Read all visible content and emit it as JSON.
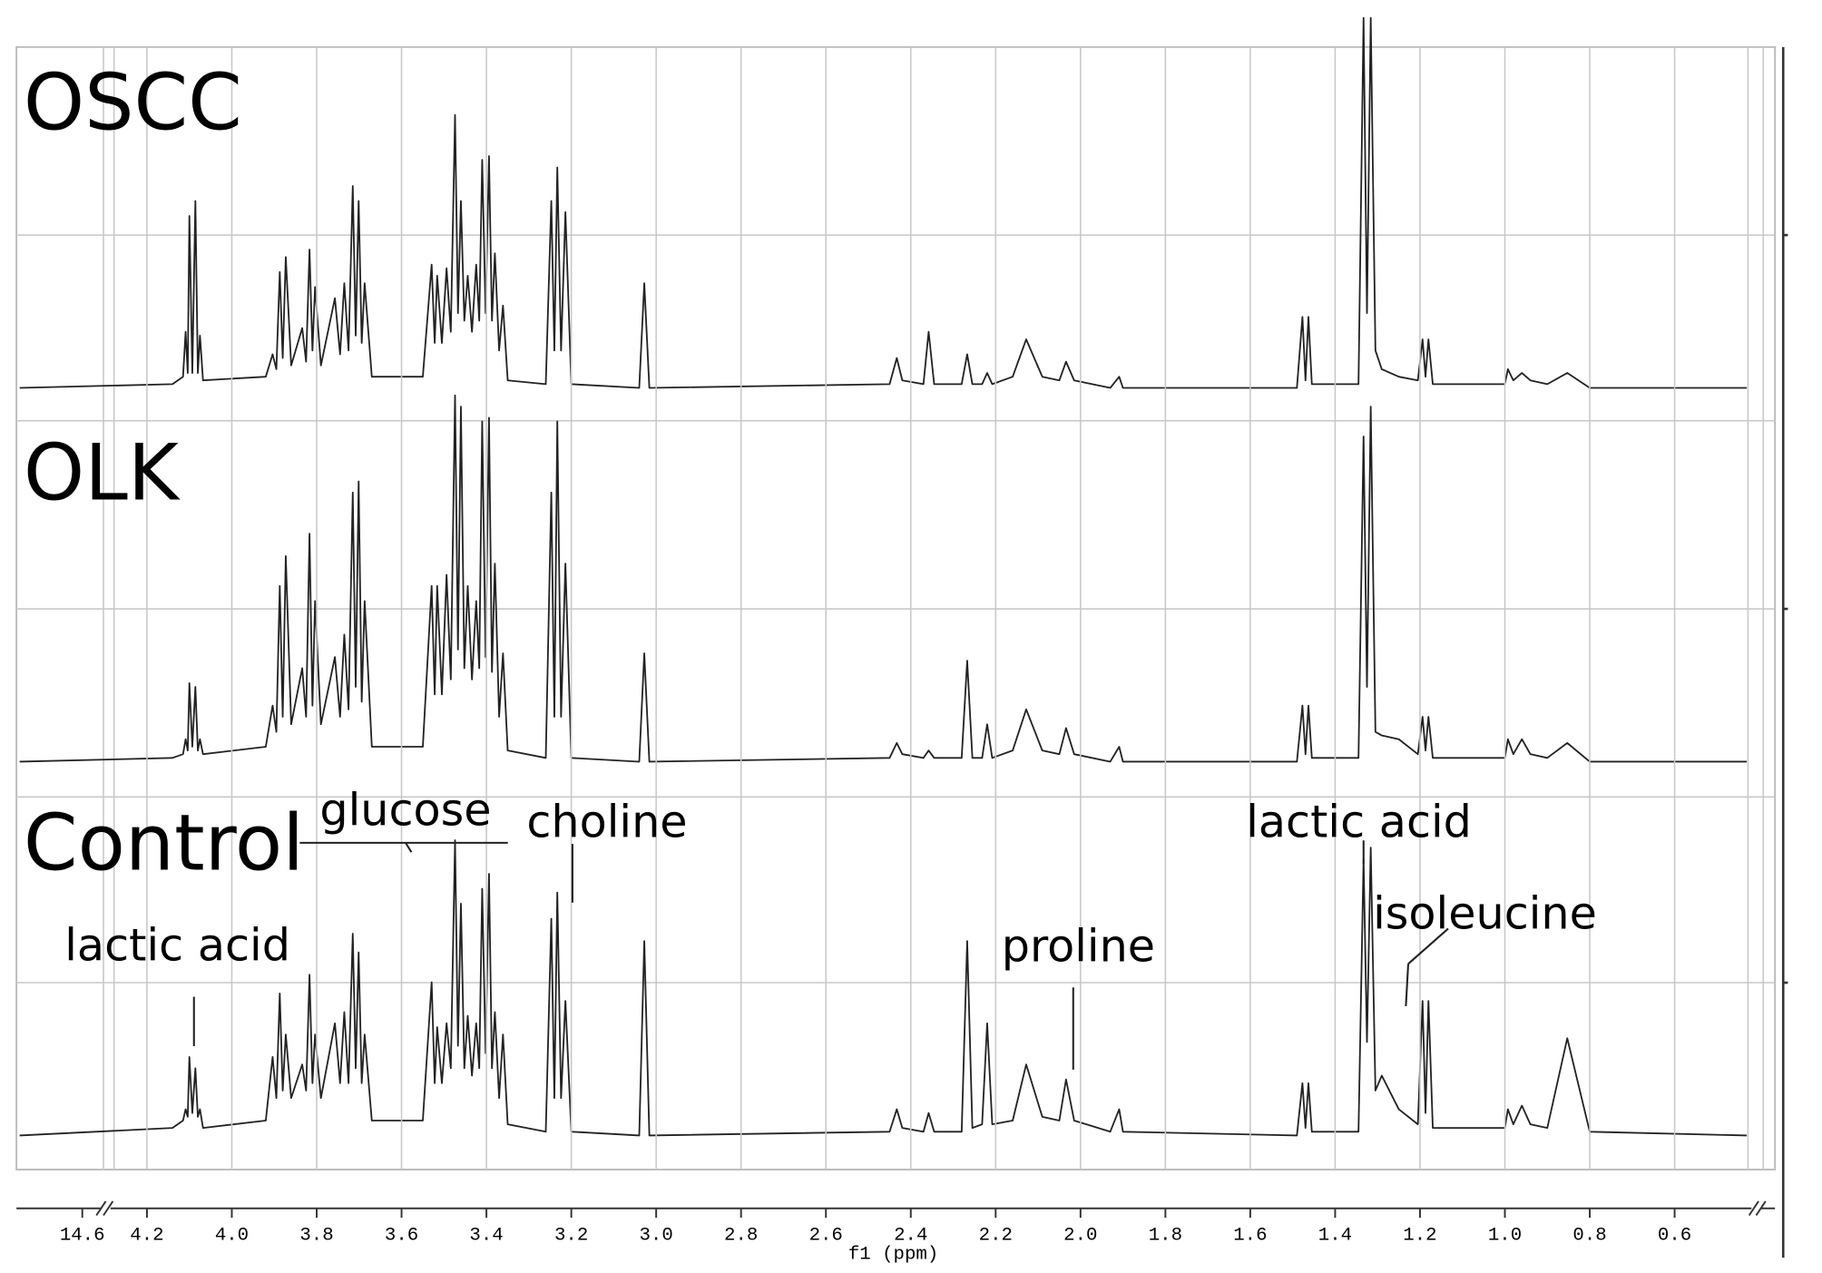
{
  "chart_data": {
    "type": "line",
    "x_label": "f1 (ppm)",
    "xlim": [
      4.5,
      0.43
    ],
    "ylim": [
      0,
      100
    ],
    "xticks": [
      14.6,
      4.2,
      {
        "value": 4,
        "label": "4.0"
      },
      3.8,
      3.6,
      3.4,
      3.2,
      {
        "value": 3,
        "label": "3.0"
      },
      2.8,
      2.6,
      2.4,
      2.2,
      {
        "value": 2,
        "label": "2.0"
      },
      1.8,
      1.6,
      1.4,
      1.2,
      {
        "value": 1,
        "label": "1.0"
      },
      0.8,
      0.6
    ],
    "grid": true,
    "annotations": [
      "glucose",
      "choline",
      "lactic acid",
      "proline",
      "lactic acid",
      "isoleucine"
    ],
    "x": [
      4.5,
      4.14,
      4.115,
      4.109,
      4.104,
      4.1,
      4.093,
      4.086,
      4.08,
      4.075,
      4.068,
      3.92,
      3.904,
      3.895,
      3.887,
      3.88,
      3.873,
      3.86,
      3.834,
      3.825,
      3.817,
      3.81,
      3.804,
      3.79,
      3.757,
      3.745,
      3.735,
      3.725,
      3.715,
      3.708,
      3.701,
      3.694,
      3.687,
      3.67,
      3.55,
      3.529,
      3.522,
      3.516,
      3.505,
      3.494,
      3.484,
      3.474,
      3.467,
      3.46,
      3.452,
      3.444,
      3.434,
      3.424,
      3.417,
      3.41,
      3.402,
      3.394,
      3.387,
      3.38,
      3.37,
      3.361,
      3.35,
      3.26,
      3.247,
      3.24,
      3.233,
      3.224,
      3.214,
      3.2,
      3.04,
      3.028,
      3.016,
      2.45,
      2.433,
      2.42,
      2.37,
      2.358,
      2.345,
      2.28,
      2.267,
      2.255,
      2.232,
      2.22,
      2.208,
      2.16,
      2.128,
      2.09,
      2.05,
      2.034,
      2.015,
      1.93,
      1.909,
      1.9,
      1.49,
      1.477,
      1.47,
      1.463,
      1.455,
      1.345,
      1.333,
      1.325,
      1.316,
      1.305,
      1.29,
      1.25,
      1.205,
      1.194,
      1.187,
      1.18,
      1.17,
      1,
      0.993,
      0.98,
      0.96,
      0.94,
      0.9,
      0.853,
      0.8,
      0.43
    ],
    "series": [
      {
        "name": "OSCC",
        "color": "#222222",
        "values": [
          0,
          1,
          3,
          15,
          4,
          46,
          4,
          50,
          4,
          14,
          2,
          3,
          9,
          5,
          31,
          8,
          35,
          6,
          16,
          7,
          37,
          10,
          27,
          6,
          24,
          9,
          28,
          10,
          54,
          14,
          50,
          12,
          28,
          3,
          3,
          33,
          12,
          30,
          12,
          32,
          15,
          73,
          20,
          50,
          18,
          30,
          15,
          33,
          18,
          61,
          20,
          62,
          18,
          36,
          10,
          22,
          2,
          1,
          50,
          10,
          59,
          10,
          47,
          1,
          0,
          28,
          0,
          1,
          8,
          2,
          1,
          15,
          1,
          1,
          9,
          1,
          1,
          4,
          1,
          3,
          13,
          3,
          2,
          7,
          2,
          0,
          3,
          0,
          0,
          19,
          2,
          19,
          1,
          1,
          99,
          20,
          99,
          10,
          5,
          3,
          2,
          13,
          3,
          13,
          1,
          1,
          5,
          2,
          4,
          2,
          1,
          4,
          0,
          0
        ]
      },
      {
        "name": "OLK",
        "color": "#222222",
        "values": [
          0,
          1,
          2,
          6,
          3,
          21,
          4,
          20,
          3,
          6,
          2,
          4,
          15,
          8,
          47,
          12,
          55,
          10,
          25,
          12,
          61,
          15,
          43,
          10,
          28,
          12,
          34,
          14,
          72,
          20,
          75,
          16,
          43,
          4,
          4,
          47,
          18,
          47,
          18,
          50,
          22,
          98,
          30,
          95,
          25,
          47,
          22,
          43,
          25,
          91,
          28,
          92,
          24,
          53,
          12,
          29,
          3,
          1,
          72,
          12,
          91,
          12,
          53,
          1,
          0,
          29,
          0,
          1,
          5,
          2,
          1,
          3,
          1,
          1,
          27,
          1,
          1,
          10,
          1,
          3,
          14,
          3,
          2,
          9,
          2,
          0,
          4,
          0,
          0,
          15,
          2,
          15,
          1,
          1,
          87,
          20,
          95,
          8,
          7,
          6,
          2,
          12,
          3,
          12,
          1,
          1,
          6,
          2,
          6,
          2,
          1,
          5,
          0,
          0
        ]
      },
      {
        "name": "Control",
        "color": "#222222",
        "values": [
          0,
          2,
          4,
          7,
          5,
          21,
          6,
          18,
          5,
          7,
          2,
          4,
          21,
          10,
          38,
          12,
          27,
          10,
          19,
          12,
          43,
          14,
          27,
          10,
          30,
          14,
          33,
          14,
          54,
          18,
          49,
          14,
          27,
          4,
          4,
          41,
          14,
          29,
          14,
          30,
          18,
          79,
          24,
          62,
          18,
          32,
          16,
          30,
          18,
          66,
          22,
          70,
          18,
          33,
          10,
          27,
          3,
          1,
          58,
          10,
          65,
          10,
          36,
          1,
          0,
          52,
          0,
          1,
          7,
          2,
          1,
          6,
          1,
          1,
          52,
          2,
          3,
          30,
          3,
          4,
          19,
          5,
          4,
          15,
          4,
          1,
          7,
          1,
          0,
          14,
          2,
          14,
          1,
          1,
          74,
          25,
          77,
          12,
          16,
          7,
          3,
          36,
          6,
          36,
          2,
          2,
          7,
          3,
          8,
          3,
          2,
          26,
          1,
          0
        ]
      }
    ]
  }
}
